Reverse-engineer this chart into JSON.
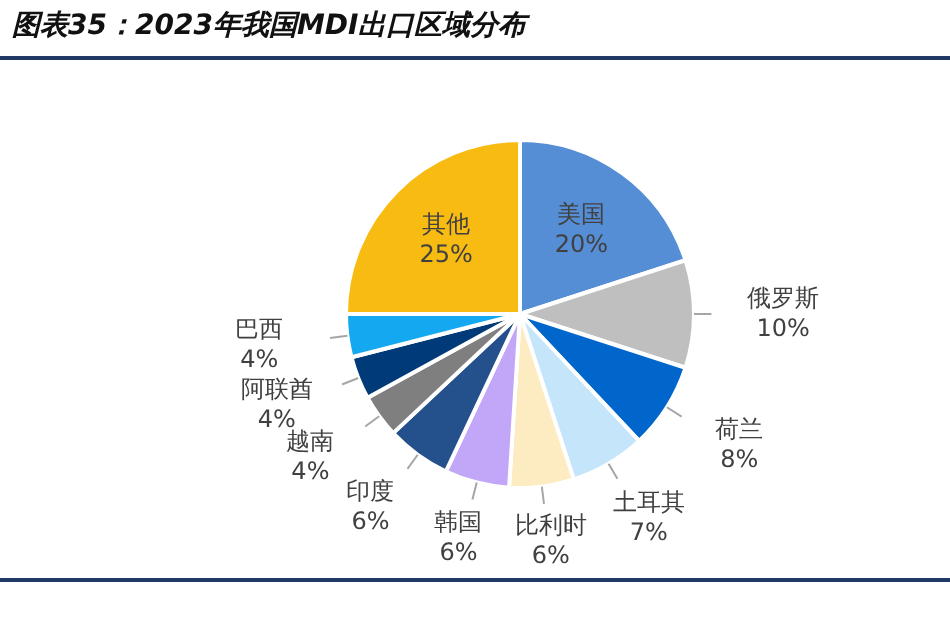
{
  "chart_data": {
    "type": "pie",
    "title": "图表35：2023年我国MDI出口区域分布",
    "categories": [
      "美国",
      "俄罗斯",
      "荷兰",
      "土耳其",
      "比利时",
      "韩国",
      "印度",
      "越南",
      "阿联酋",
      "巴西",
      "其他"
    ],
    "values": [
      20,
      10,
      8,
      7,
      6,
      6,
      6,
      4,
      4,
      4,
      25
    ],
    "value_labels": [
      "20%",
      "10%",
      "8%",
      "7%",
      "6%",
      "6%",
      "6%",
      "4%",
      "4%",
      "4%",
      "25%"
    ],
    "colors": [
      "#558ed5",
      "#bfbfbf",
      "#0066cc",
      "#c5e5fa",
      "#fdebc1",
      "#c2a6f7",
      "#24508c",
      "#7f7f7f",
      "#003a78",
      "#13a8f0",
      "#f8bb12"
    ],
    "legend": false
  }
}
